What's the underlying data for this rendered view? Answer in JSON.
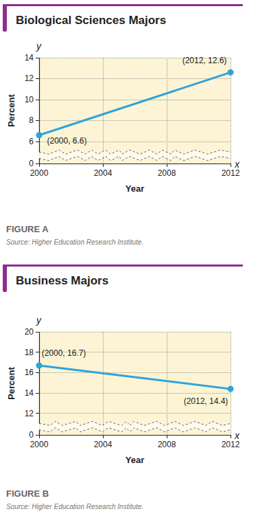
{
  "chart_data": [
    {
      "type": "line",
      "title": "Biological Sciences Majors",
      "x_label": "Year",
      "y_label": "Percent",
      "x_var": "x",
      "y_var": "y",
      "x": [
        2000,
        2012
      ],
      "values": [
        6.6,
        12.6
      ],
      "value_labels": [
        "(2000, 6.6)",
        "(2012, 12.6)"
      ],
      "data_labels": true,
      "color": "#2ea3db",
      "marker": "circle",
      "grid": true,
      "xlim": [
        2000,
        2012
      ],
      "xticks": [
        2000,
        2004,
        2008,
        2012
      ],
      "ylim": [
        0,
        14
      ],
      "yticks": [
        0,
        6,
        8,
        10,
        12,
        14
      ],
      "caption": "FIGURE A",
      "source": "Source: Higher Education Research Institute."
    },
    {
      "type": "line",
      "title": "Business Majors",
      "x_label": "Year",
      "y_label": "Percent",
      "x_var": "x",
      "y_var": "y",
      "x": [
        2000,
        2012
      ],
      "values": [
        16.7,
        14.4
      ],
      "value_labels": [
        "(2000, 16.7)",
        "(2012, 14.4)"
      ],
      "data_labels": true,
      "color": "#2ea3db",
      "marker": "circle",
      "grid": true,
      "xlim": [
        2000,
        2012
      ],
      "xticks": [
        2000,
        2004,
        2008,
        2012
      ],
      "ylim": [
        0,
        20
      ],
      "yticks": [
        0,
        12,
        14,
        16,
        18,
        20
      ],
      "caption": "FIGURE B",
      "source": "Source: Higher Education Research Institute."
    }
  ]
}
